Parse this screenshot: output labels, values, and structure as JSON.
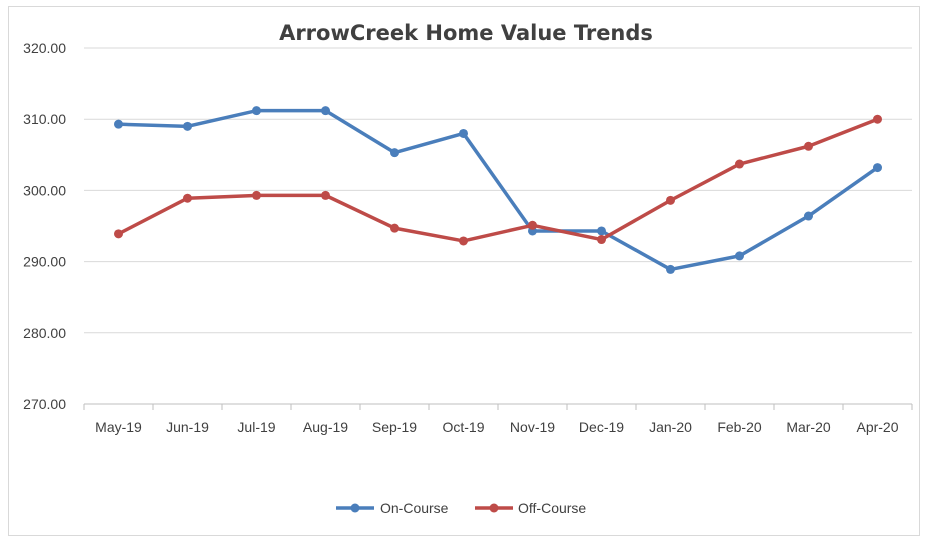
{
  "chart_data": {
    "type": "line",
    "title": "ArrowCreek Home Value Trends",
    "xlabel": "",
    "ylabel": "",
    "categories": [
      "May-19",
      "Jun-19",
      "Jul-19",
      "Aug-19",
      "Sep-19",
      "Oct-19",
      "Nov-19",
      "Dec-19",
      "Jan-20",
      "Feb-20",
      "Mar-20",
      "Apr-20"
    ],
    "ylim": [
      270,
      320
    ],
    "yticks": [
      "270.00",
      "280.00",
      "290.00",
      "300.00",
      "310.00",
      "320.00"
    ],
    "ytick_values": [
      270,
      280,
      290,
      300,
      310,
      320
    ],
    "grid": true,
    "legend": "bottom",
    "series": [
      {
        "name": "On-Course",
        "color": "#4a7ebb",
        "values": [
          309.3,
          309.0,
          311.2,
          311.2,
          305.3,
          308.0,
          294.3,
          294.3,
          288.9,
          290.8,
          296.4,
          303.2
        ]
      },
      {
        "name": "Off-Course",
        "color": "#be4b48",
        "values": [
          293.9,
          298.9,
          299.3,
          299.3,
          294.7,
          292.9,
          295.1,
          293.1,
          298.6,
          303.7,
          306.2,
          310.0
        ]
      }
    ]
  }
}
